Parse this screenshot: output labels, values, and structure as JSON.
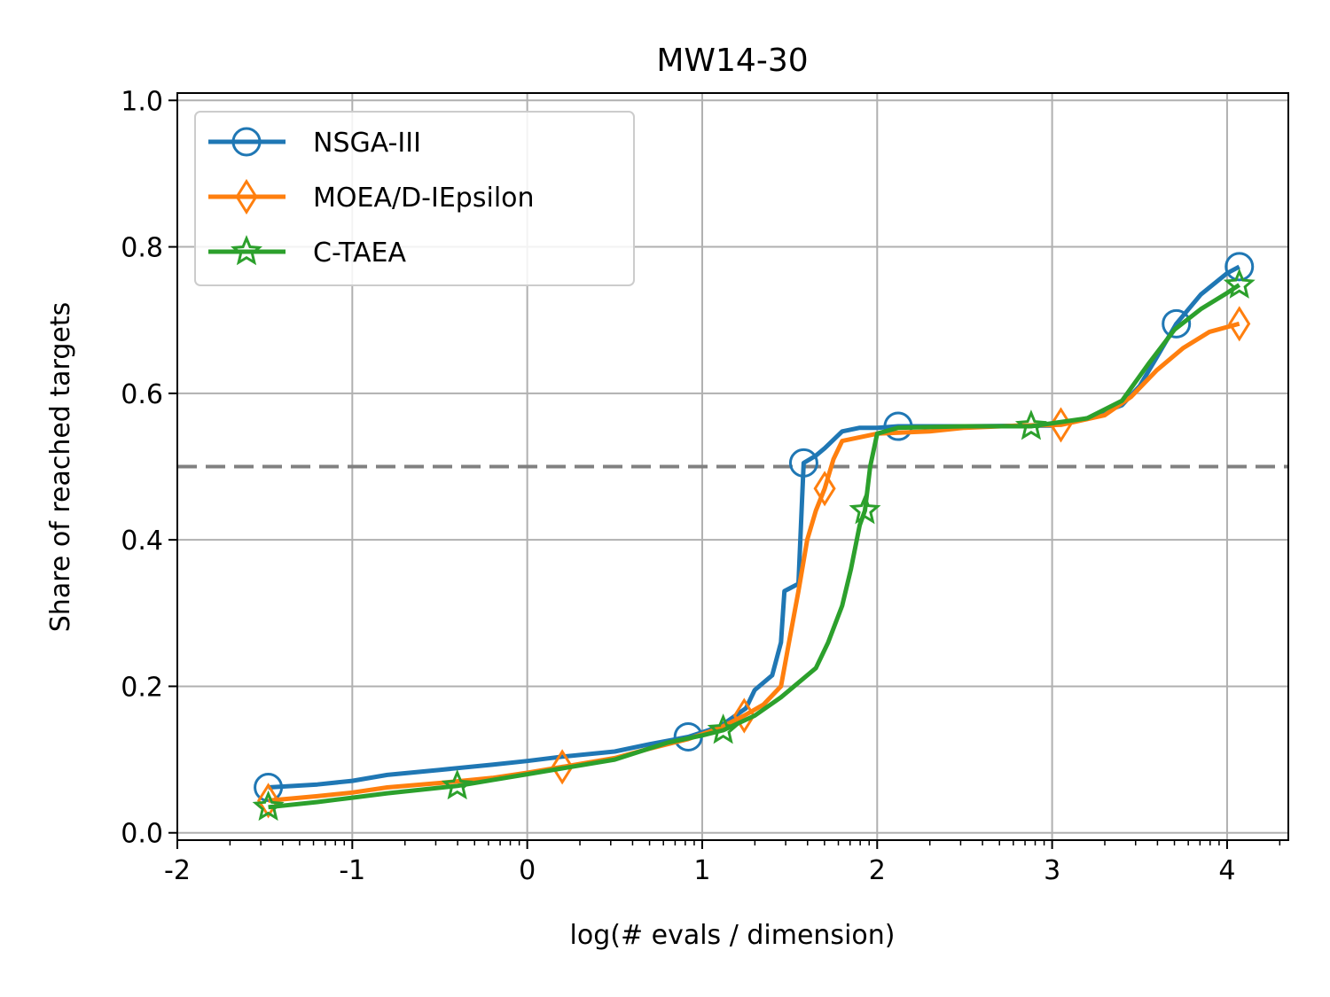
{
  "chart_data": {
    "type": "line",
    "title": "MW14-30",
    "xlabel": "log(# evals / dimension)",
    "ylabel": "Share of reached targets",
    "xlim": [
      -2,
      4.35
    ],
    "ylim": [
      -0.01,
      1.01
    ],
    "x_ticks": [
      -2,
      -1,
      0,
      1,
      2,
      3,
      4
    ],
    "x_tick_labels": [
      "-2",
      "-1",
      "0",
      "1",
      "2",
      "3",
      "4"
    ],
    "y_ticks": [
      0.0,
      0.2,
      0.4,
      0.6,
      0.8,
      1.0
    ],
    "y_tick_labels": [
      "0.0",
      "0.2",
      "0.4",
      "0.6",
      "0.8",
      "1.0"
    ],
    "grid": true,
    "legend_position": "top-left",
    "reference_line": {
      "y": 0.5,
      "style": "dashed",
      "color": "#808080"
    },
    "series": [
      {
        "name": "NSGA-III",
        "color": "#1f77b4",
        "marker": "circle",
        "points": [
          [
            -1.48,
            0.062
          ],
          [
            -1.2,
            0.066
          ],
          [
            -1.0,
            0.071
          ],
          [
            -0.8,
            0.079
          ],
          [
            -0.5,
            0.086
          ],
          [
            -0.2,
            0.093
          ],
          [
            0.0,
            0.098
          ],
          [
            0.2,
            0.104
          ],
          [
            0.5,
            0.111
          ],
          [
            0.7,
            0.121
          ],
          [
            0.92,
            0.131
          ],
          [
            1.1,
            0.145
          ],
          [
            1.25,
            0.17
          ],
          [
            1.3,
            0.195
          ],
          [
            1.4,
            0.215
          ],
          [
            1.45,
            0.26
          ],
          [
            1.47,
            0.33
          ],
          [
            1.55,
            0.34
          ],
          [
            1.57,
            0.45
          ],
          [
            1.58,
            0.505
          ],
          [
            1.65,
            0.515
          ],
          [
            1.7,
            0.525
          ],
          [
            1.8,
            0.548
          ],
          [
            1.9,
            0.553
          ],
          [
            2.0,
            0.553
          ],
          [
            2.12,
            0.555
          ],
          [
            2.5,
            0.555
          ],
          [
            3.0,
            0.556
          ],
          [
            3.2,
            0.566
          ],
          [
            3.4,
            0.584
          ],
          [
            3.5,
            0.61
          ],
          [
            3.6,
            0.65
          ],
          [
            3.71,
            0.695
          ],
          [
            3.85,
            0.735
          ],
          [
            4.0,
            0.764
          ],
          [
            4.07,
            0.773
          ]
        ],
        "markers_at": [
          -1.48,
          0.92,
          1.58,
          2.12,
          3.71,
          4.07
        ]
      },
      {
        "name": "MOEA/D-IEpsilon",
        "color": "#ff7f0e",
        "marker": "diamond",
        "points": [
          [
            -1.48,
            0.044
          ],
          [
            -1.2,
            0.05
          ],
          [
            -1.0,
            0.055
          ],
          [
            -0.8,
            0.062
          ],
          [
            -0.5,
            0.068
          ],
          [
            -0.2,
            0.075
          ],
          [
            0.0,
            0.082
          ],
          [
            0.2,
            0.09
          ],
          [
            0.5,
            0.102
          ],
          [
            0.7,
            0.115
          ],
          [
            0.92,
            0.128
          ],
          [
            1.1,
            0.143
          ],
          [
            1.24,
            0.16
          ],
          [
            1.35,
            0.175
          ],
          [
            1.45,
            0.2
          ],
          [
            1.5,
            0.265
          ],
          [
            1.55,
            0.33
          ],
          [
            1.6,
            0.4
          ],
          [
            1.65,
            0.44
          ],
          [
            1.7,
            0.47
          ],
          [
            1.75,
            0.51
          ],
          [
            1.8,
            0.535
          ],
          [
            1.9,
            0.54
          ],
          [
            2.0,
            0.545
          ],
          [
            2.3,
            0.548
          ],
          [
            2.5,
            0.553
          ],
          [
            2.8,
            0.556
          ],
          [
            3.05,
            0.557
          ],
          [
            3.3,
            0.57
          ],
          [
            3.45,
            0.595
          ],
          [
            3.6,
            0.632
          ],
          [
            3.75,
            0.662
          ],
          [
            3.9,
            0.684
          ],
          [
            4.07,
            0.695
          ]
        ],
        "markers_at": [
          -1.48,
          0.2,
          1.24,
          1.7,
          3.05,
          4.07
        ]
      },
      {
        "name": "C-TAEA",
        "color": "#2ca02c",
        "marker": "star",
        "points": [
          [
            -1.48,
            0.035
          ],
          [
            -1.2,
            0.042
          ],
          [
            -1.0,
            0.048
          ],
          [
            -0.8,
            0.054
          ],
          [
            -0.4,
            0.064
          ],
          [
            -0.2,
            0.072
          ],
          [
            0.0,
            0.08
          ],
          [
            0.2,
            0.088
          ],
          [
            0.5,
            0.1
          ],
          [
            0.8,
            0.123
          ],
          [
            1.0,
            0.133
          ],
          [
            1.12,
            0.14
          ],
          [
            1.3,
            0.16
          ],
          [
            1.45,
            0.185
          ],
          [
            1.55,
            0.205
          ],
          [
            1.65,
            0.225
          ],
          [
            1.72,
            0.26
          ],
          [
            1.8,
            0.31
          ],
          [
            1.85,
            0.36
          ],
          [
            1.9,
            0.42
          ],
          [
            1.93,
            0.44
          ],
          [
            1.96,
            0.5
          ],
          [
            2.0,
            0.545
          ],
          [
            2.12,
            0.553
          ],
          [
            2.5,
            0.555
          ],
          [
            2.88,
            0.555
          ],
          [
            3.2,
            0.566
          ],
          [
            3.4,
            0.59
          ],
          [
            3.55,
            0.64
          ],
          [
            3.7,
            0.687
          ],
          [
            3.85,
            0.715
          ],
          [
            4.0,
            0.737
          ],
          [
            4.07,
            0.748
          ]
        ],
        "markers_at": [
          -1.48,
          -0.4,
          1.12,
          1.93,
          2.88,
          4.07
        ]
      }
    ]
  }
}
